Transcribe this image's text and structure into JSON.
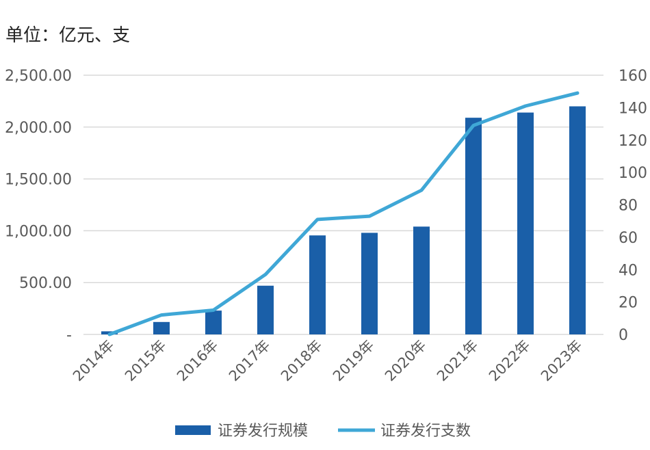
{
  "chart_data": {
    "type": "bar",
    "unit_label": "单位：亿元、支",
    "categories": [
      "2014年",
      "2015年",
      "2016年",
      "2017年",
      "2018年",
      "2019年",
      "2020年",
      "2021年",
      "2022年",
      "2023年"
    ],
    "series": [
      {
        "name": "证券发行规模",
        "type": "bar",
        "axis": "left",
        "color": "#1a5fa8",
        "values": [
          30,
          120,
          230,
          470,
          955,
          980,
          1040,
          2090,
          2140,
          2200
        ]
      },
      {
        "name": "证券发行支数",
        "type": "line",
        "axis": "right",
        "color": "#3fa7d6",
        "values": [
          0,
          12,
          15,
          37,
          71,
          73,
          89,
          129,
          141,
          149
        ]
      }
    ],
    "left_axis": {
      "ylim": [
        0,
        2500
      ],
      "ticks": [
        0,
        500,
        1000,
        1500,
        2000,
        2500
      ],
      "tick_labels": [
        "-",
        "500.00",
        "1,000.00",
        "1,500.00",
        "2,000.00",
        "2,500.00"
      ]
    },
    "right_axis": {
      "ylim": [
        0,
        160
      ],
      "ticks": [
        0,
        20,
        40,
        60,
        80,
        100,
        120,
        140,
        160
      ],
      "tick_labels": [
        "0",
        "20",
        "40",
        "60",
        "80",
        "100",
        "120",
        "140",
        "160"
      ]
    },
    "grid": true,
    "legend_position": "bottom"
  }
}
